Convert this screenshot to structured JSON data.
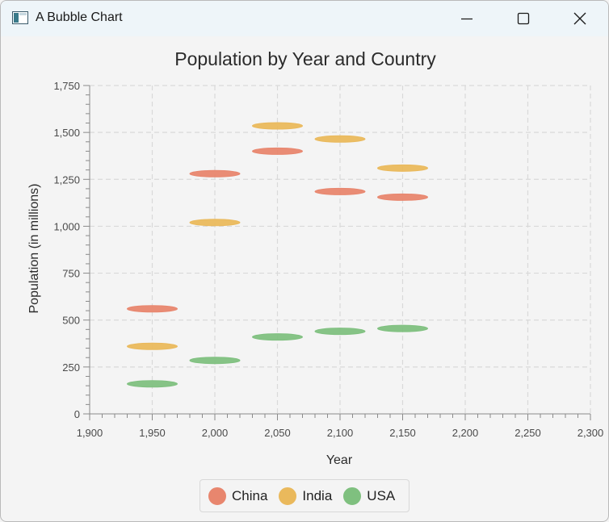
{
  "window": {
    "title": "A Bubble Chart",
    "icon": "java-app-icon"
  },
  "controls": {
    "minimize_icon": "minimize-icon",
    "maximize_icon": "maximize-icon",
    "close_icon": "close-icon"
  },
  "chart_data": {
    "type": "bubble",
    "title": "Population by Year and Country",
    "xlabel": "Year",
    "ylabel": "Population (in millions)",
    "xlim": [
      1900,
      2300
    ],
    "ylim": [
      0,
      1750
    ],
    "xticks": [
      "1,900",
      "1,950",
      "2,000",
      "2,050",
      "2,100",
      "2,150",
      "2,200",
      "2,250",
      "2,300"
    ],
    "yticks": [
      "0",
      "250",
      "500",
      "750",
      "1,000",
      "1,250",
      "1,500",
      "1,750"
    ],
    "grid": true,
    "legend_position": "bottom",
    "series": [
      {
        "name": "China",
        "color": "#e8866e",
        "points": [
          {
            "x": 1950,
            "y": 560
          },
          {
            "x": 2000,
            "y": 1280
          },
          {
            "x": 2050,
            "y": 1400
          },
          {
            "x": 2100,
            "y": 1185
          },
          {
            "x": 2150,
            "y": 1155
          }
        ]
      },
      {
        "name": "India",
        "color": "#eab95c",
        "points": [
          {
            "x": 1950,
            "y": 360
          },
          {
            "x": 2000,
            "y": 1020
          },
          {
            "x": 2050,
            "y": 1535
          },
          {
            "x": 2100,
            "y": 1465
          },
          {
            "x": 2150,
            "y": 1310
          }
        ]
      },
      {
        "name": "USA",
        "color": "#7fc07f",
        "points": [
          {
            "x": 1950,
            "y": 160
          },
          {
            "x": 2000,
            "y": 285
          },
          {
            "x": 2050,
            "y": 410
          },
          {
            "x": 2100,
            "y": 440
          },
          {
            "x": 2150,
            "y": 455
          }
        ]
      }
    ]
  }
}
